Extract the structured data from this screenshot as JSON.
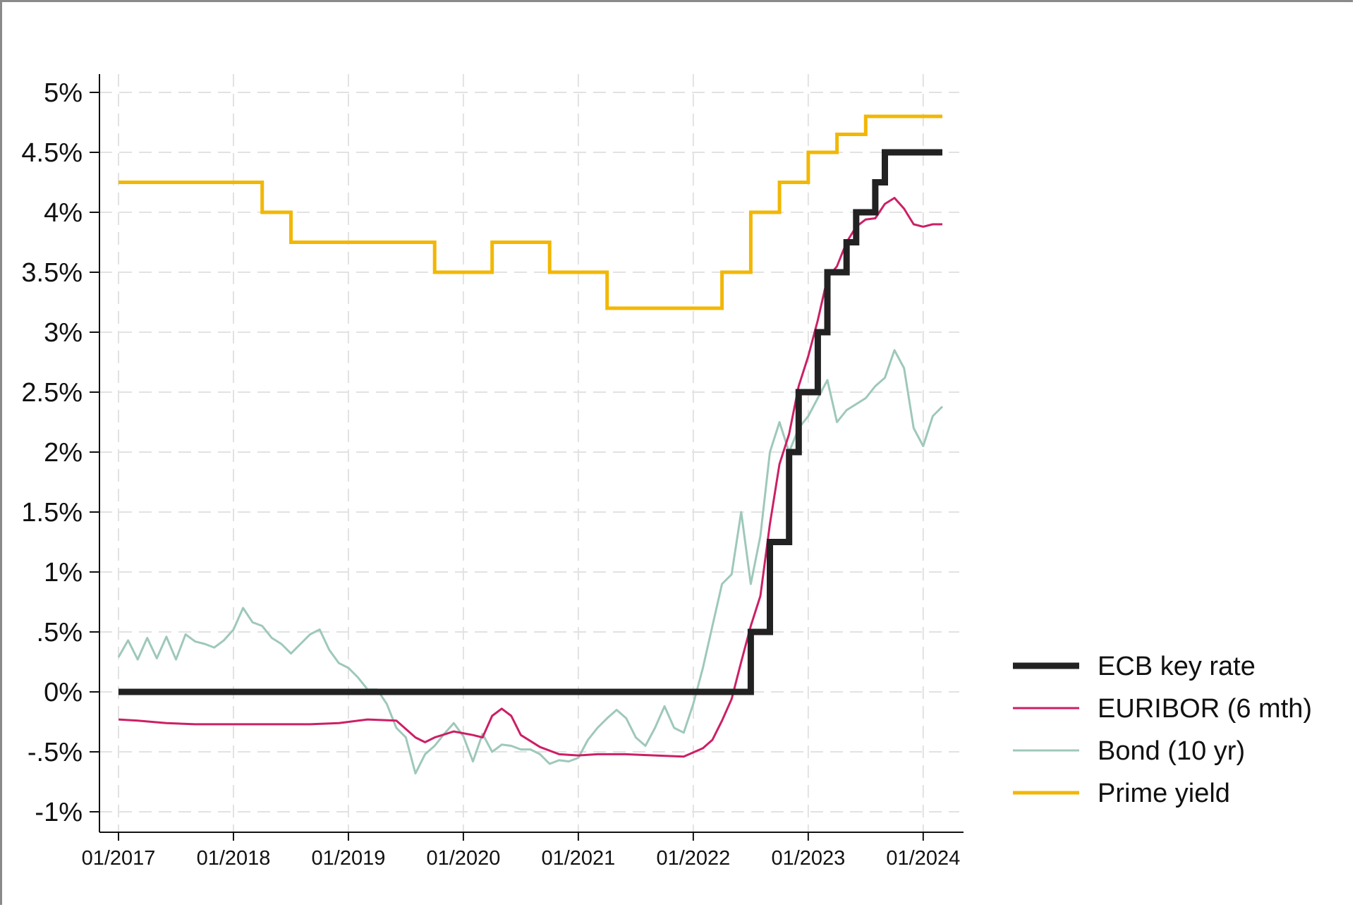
{
  "chart_data": {
    "type": "line",
    "title": "",
    "xlabel": "",
    "ylabel": "",
    "x_range": [
      "2017-01",
      "2024-03"
    ],
    "ylim": [
      -1,
      5
    ],
    "y_ticks": [
      {
        "value": 5,
        "label": "5%"
      },
      {
        "value": 4.5,
        "label": "4.5%"
      },
      {
        "value": 4,
        "label": "4%"
      },
      {
        "value": 3.5,
        "label": "3.5%"
      },
      {
        "value": 3,
        "label": "3%"
      },
      {
        "value": 2.5,
        "label": "2.5%"
      },
      {
        "value": 2,
        "label": "2%"
      },
      {
        "value": 1.5,
        "label": "1.5%"
      },
      {
        "value": 1,
        "label": "1%"
      },
      {
        "value": 0.5,
        "label": ".5%"
      },
      {
        "value": 0,
        "label": "0%"
      },
      {
        "value": -0.5,
        "label": "-.5%"
      },
      {
        "value": -1,
        "label": "-1%"
      }
    ],
    "x_ticks": [
      {
        "value": "2017-01",
        "label": "01/2017"
      },
      {
        "value": "2018-01",
        "label": "01/2018"
      },
      {
        "value": "2019-01",
        "label": "01/2019"
      },
      {
        "value": "2020-01",
        "label": "01/2020"
      },
      {
        "value": "2021-01",
        "label": "01/2021"
      },
      {
        "value": "2022-01",
        "label": "01/2022"
      },
      {
        "value": "2023-01",
        "label": "01/2023"
      },
      {
        "value": "2024-01",
        "label": "01/2024"
      }
    ],
    "grid": true,
    "legend_position": "bottom-right",
    "series": [
      {
        "name": "ECB key rate",
        "color": "#222222",
        "style": "step",
        "points": [
          [
            "2017-01",
            0
          ],
          [
            "2022-07",
            0
          ],
          [
            "2022-07",
            0.5
          ],
          [
            "2022-09",
            0.5
          ],
          [
            "2022-09",
            1.25
          ],
          [
            "2022-11",
            1.25
          ],
          [
            "2022-11",
            2.0
          ],
          [
            "2022-12",
            2.0
          ],
          [
            "2022-12",
            2.5
          ],
          [
            "2023-02",
            2.5
          ],
          [
            "2023-02",
            3.0
          ],
          [
            "2023-03",
            3.0
          ],
          [
            "2023-03",
            3.5
          ],
          [
            "2023-05",
            3.5
          ],
          [
            "2023-05",
            3.75
          ],
          [
            "2023-06",
            3.75
          ],
          [
            "2023-06",
            4.0
          ],
          [
            "2023-08",
            4.0
          ],
          [
            "2023-08",
            4.25
          ],
          [
            "2023-09",
            4.25
          ],
          [
            "2023-09",
            4.5
          ],
          [
            "2024-03",
            4.5
          ]
        ]
      },
      {
        "name": "EURIBOR (6 mth)",
        "color": "#cc1f66",
        "style": "line",
        "points": [
          [
            "2017-01",
            -0.23
          ],
          [
            "2017-03",
            -0.24
          ],
          [
            "2017-06",
            -0.26
          ],
          [
            "2017-09",
            -0.27
          ],
          [
            "2017-12",
            -0.27
          ],
          [
            "2018-03",
            -0.27
          ],
          [
            "2018-06",
            -0.27
          ],
          [
            "2018-09",
            -0.27
          ],
          [
            "2018-12",
            -0.26
          ],
          [
            "2019-03",
            -0.23
          ],
          [
            "2019-06",
            -0.24
          ],
          [
            "2019-08",
            -0.38
          ],
          [
            "2019-09",
            -0.42
          ],
          [
            "2019-10",
            -0.38
          ],
          [
            "2019-12",
            -0.33
          ],
          [
            "2020-02",
            -0.36
          ],
          [
            "2020-03",
            -0.38
          ],
          [
            "2020-04",
            -0.2
          ],
          [
            "2020-05",
            -0.14
          ],
          [
            "2020-06",
            -0.2
          ],
          [
            "2020-07",
            -0.36
          ],
          [
            "2020-09",
            -0.46
          ],
          [
            "2020-11",
            -0.52
          ],
          [
            "2021-01",
            -0.53
          ],
          [
            "2021-03",
            -0.52
          ],
          [
            "2021-06",
            -0.52
          ],
          [
            "2021-09",
            -0.53
          ],
          [
            "2021-12",
            -0.54
          ],
          [
            "2022-02",
            -0.47
          ],
          [
            "2022-03",
            -0.4
          ],
          [
            "2022-04",
            -0.24
          ],
          [
            "2022-05",
            -0.06
          ],
          [
            "2022-06",
            0.25
          ],
          [
            "2022-07",
            0.55
          ],
          [
            "2022-08",
            0.8
          ],
          [
            "2022-09",
            1.4
          ],
          [
            "2022-10",
            1.9
          ],
          [
            "2022-11",
            2.15
          ],
          [
            "2022-12",
            2.55
          ],
          [
            "2023-01",
            2.8
          ],
          [
            "2023-02",
            3.1
          ],
          [
            "2023-03",
            3.45
          ],
          [
            "2023-04",
            3.55
          ],
          [
            "2023-05",
            3.75
          ],
          [
            "2023-06",
            3.88
          ],
          [
            "2023-07",
            3.94
          ],
          [
            "2023-08",
            3.95
          ],
          [
            "2023-09",
            4.07
          ],
          [
            "2023-10",
            4.12
          ],
          [
            "2023-11",
            4.03
          ],
          [
            "2023-12",
            3.9
          ],
          [
            "2024-01",
            3.88
          ],
          [
            "2024-02",
            3.9
          ],
          [
            "2024-03",
            3.9
          ]
        ]
      },
      {
        "name": "Bond (10 yr)",
        "color": "#9ec8ba",
        "style": "line",
        "points": [
          [
            "2017-01",
            0.29
          ],
          [
            "2017-02",
            0.43
          ],
          [
            "2017-03",
            0.27
          ],
          [
            "2017-04",
            0.45
          ],
          [
            "2017-05",
            0.28
          ],
          [
            "2017-06",
            0.46
          ],
          [
            "2017-07",
            0.27
          ],
          [
            "2017-08",
            0.48
          ],
          [
            "2017-09",
            0.42
          ],
          [
            "2017-10",
            0.4
          ],
          [
            "2017-11",
            0.37
          ],
          [
            "2017-12",
            0.43
          ],
          [
            "2018-01",
            0.52
          ],
          [
            "2018-02",
            0.7
          ],
          [
            "2018-03",
            0.58
          ],
          [
            "2018-04",
            0.55
          ],
          [
            "2018-05",
            0.45
          ],
          [
            "2018-06",
            0.4
          ],
          [
            "2018-07",
            0.32
          ],
          [
            "2018-08",
            0.4
          ],
          [
            "2018-09",
            0.48
          ],
          [
            "2018-10",
            0.52
          ],
          [
            "2018-11",
            0.35
          ],
          [
            "2018-12",
            0.24
          ],
          [
            "2019-01",
            0.2
          ],
          [
            "2019-02",
            0.12
          ],
          [
            "2019-03",
            0.02
          ],
          [
            "2019-04",
            0.02
          ],
          [
            "2019-05",
            -0.1
          ],
          [
            "2019-06",
            -0.3
          ],
          [
            "2019-07",
            -0.38
          ],
          [
            "2019-08",
            -0.68
          ],
          [
            "2019-09",
            -0.52
          ],
          [
            "2019-10",
            -0.45
          ],
          [
            "2019-11",
            -0.35
          ],
          [
            "2019-12",
            -0.26
          ],
          [
            "2020-01",
            -0.37
          ],
          [
            "2020-02",
            -0.58
          ],
          [
            "2020-03",
            -0.35
          ],
          [
            "2020-04",
            -0.5
          ],
          [
            "2020-05",
            -0.44
          ],
          [
            "2020-06",
            -0.45
          ],
          [
            "2020-07",
            -0.48
          ],
          [
            "2020-08",
            -0.48
          ],
          [
            "2020-09",
            -0.52
          ],
          [
            "2020-10",
            -0.6
          ],
          [
            "2020-11",
            -0.57
          ],
          [
            "2020-12",
            -0.58
          ],
          [
            "2021-01",
            -0.55
          ],
          [
            "2021-02",
            -0.4
          ],
          [
            "2021-03",
            -0.3
          ],
          [
            "2021-04",
            -0.22
          ],
          [
            "2021-05",
            -0.15
          ],
          [
            "2021-06",
            -0.22
          ],
          [
            "2021-07",
            -0.38
          ],
          [
            "2021-08",
            -0.45
          ],
          [
            "2021-09",
            -0.3
          ],
          [
            "2021-10",
            -0.12
          ],
          [
            "2021-11",
            -0.3
          ],
          [
            "2021-12",
            -0.34
          ],
          [
            "2022-01",
            -0.1
          ],
          [
            "2022-02",
            0.2
          ],
          [
            "2022-03",
            0.55
          ],
          [
            "2022-04",
            0.9
          ],
          [
            "2022-05",
            0.98
          ],
          [
            "2022-06",
            1.5
          ],
          [
            "2022-07",
            0.9
          ],
          [
            "2022-08",
            1.3
          ],
          [
            "2022-09",
            2.0
          ],
          [
            "2022-10",
            2.25
          ],
          [
            "2022-11",
            2.0
          ],
          [
            "2022-12",
            2.2
          ],
          [
            "2023-01",
            2.3
          ],
          [
            "2023-02",
            2.45
          ],
          [
            "2023-03",
            2.6
          ],
          [
            "2023-04",
            2.25
          ],
          [
            "2023-05",
            2.35
          ],
          [
            "2023-06",
            2.4
          ],
          [
            "2023-07",
            2.45
          ],
          [
            "2023-08",
            2.55
          ],
          [
            "2023-09",
            2.62
          ],
          [
            "2023-10",
            2.85
          ],
          [
            "2023-11",
            2.7
          ],
          [
            "2023-12",
            2.2
          ],
          [
            "2024-01",
            2.05
          ],
          [
            "2024-02",
            2.3
          ],
          [
            "2024-03",
            2.38
          ]
        ]
      },
      {
        "name": "Prime yield",
        "color": "#f2b705",
        "style": "step",
        "points": [
          [
            "2017-01",
            4.25
          ],
          [
            "2018-04",
            4.25
          ],
          [
            "2018-04",
            4.0
          ],
          [
            "2018-07",
            4.0
          ],
          [
            "2018-07",
            3.75
          ],
          [
            "2019-10",
            3.75
          ],
          [
            "2019-10",
            3.5
          ],
          [
            "2020-04",
            3.5
          ],
          [
            "2020-04",
            3.75
          ],
          [
            "2020-10",
            3.75
          ],
          [
            "2020-10",
            3.5
          ],
          [
            "2021-04",
            3.5
          ],
          [
            "2021-04",
            3.2
          ],
          [
            "2022-04",
            3.2
          ],
          [
            "2022-04",
            3.5
          ],
          [
            "2022-07",
            3.5
          ],
          [
            "2022-07",
            4.0
          ],
          [
            "2022-10",
            4.0
          ],
          [
            "2022-10",
            4.25
          ],
          [
            "2023-01",
            4.25
          ],
          [
            "2023-01",
            4.5
          ],
          [
            "2023-04",
            4.5
          ],
          [
            "2023-04",
            4.65
          ],
          [
            "2023-07",
            4.65
          ],
          [
            "2023-07",
            4.8
          ],
          [
            "2024-03",
            4.8
          ]
        ]
      }
    ]
  }
}
